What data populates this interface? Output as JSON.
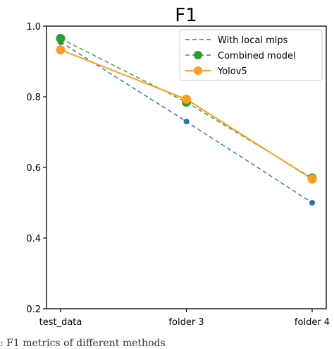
{
  "caption": ":   F1 metrics of different methods",
  "chart_data": {
    "type": "line",
    "title": "F1",
    "xlabel": "",
    "ylabel": "",
    "categories": [
      "test_data",
      "folder 3",
      "folder 4"
    ],
    "ylim": [
      0.2,
      1.0
    ],
    "yticks": [
      0.2,
      0.4,
      0.6,
      0.8,
      1.0
    ],
    "ytick_labels": [
      "0.2",
      "0.4",
      "0.6",
      "0.8",
      "1.0"
    ],
    "grid": false,
    "legend_position": "top-right",
    "series": [
      {
        "name": "With local mips",
        "values": [
          0.955,
          0.73,
          0.5
        ],
        "color": "#1f77b4",
        "line_style": "dashed",
        "marker": "small-circle"
      },
      {
        "name": "Combined model",
        "values": [
          0.965,
          0.785,
          0.57
        ],
        "color": "#2ca02c",
        "line_style": "dashed",
        "marker": "large-circle"
      },
      {
        "name": "Yolov5",
        "values": [
          0.933,
          0.793,
          0.567
        ],
        "color": "#ff9f1c",
        "line_style": "solid",
        "marker": "large-circle"
      }
    ]
  }
}
